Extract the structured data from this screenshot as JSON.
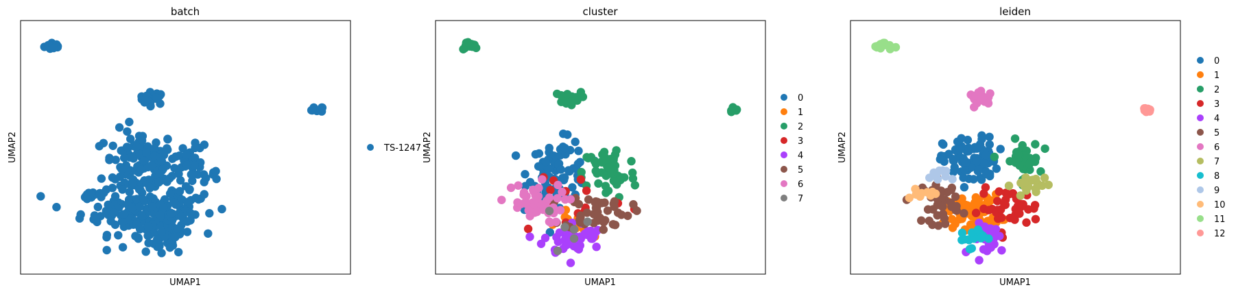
{
  "palette": {
    "batch": [
      "#1f77b4"
    ],
    "cluster": [
      "#1f77b4",
      "#ff7f0e",
      "#279e68",
      "#d62728",
      "#aa40fc",
      "#8c564b",
      "#e377c2",
      "#7f7f7f"
    ],
    "leiden": [
      "#1f77b4",
      "#ff7f0e",
      "#279e68",
      "#d62728",
      "#aa40fc",
      "#8c564b",
      "#e377c2",
      "#b5bd61",
      "#17becf",
      "#aec7e8",
      "#ffbb78",
      "#98df8a",
      "#ff9896"
    ]
  },
  "chart_data": [
    {
      "type": "scatter",
      "title": "batch",
      "xlabel": "UMAP1",
      "ylabel": "UMAP2",
      "ticks": "none",
      "legend_placement": "right",
      "legend": [
        "TS-1247"
      ],
      "groups": [
        {
          "name": "TS-1247",
          "clusters": [
            {
              "cx": 0.6,
              "cy": 15.2,
              "sx": 0.15,
              "sy": 0.12,
              "n": 14
            },
            {
              "cx": 3.9,
              "cy": 12.1,
              "sx": 0.22,
              "sy": 0.18,
              "n": 22
            },
            {
              "cx": 9.4,
              "cy": 11.4,
              "sx": 0.1,
              "sy": 0.1,
              "n": 8
            },
            {
              "cx": 3.5,
              "cy": 8.2,
              "sx": 0.6,
              "sy": 1.0,
              "n": 120
            },
            {
              "cx": 3.3,
              "cy": 5.5,
              "sx": 0.9,
              "sy": 0.7,
              "n": 120
            },
            {
              "cx": 5.2,
              "cy": 7.6,
              "sx": 0.45,
              "sy": 0.8,
              "n": 50
            },
            {
              "cx": 4.6,
              "cy": 5.2,
              "sx": 0.5,
              "sy": 0.6,
              "n": 50
            },
            {
              "cx": 4.1,
              "cy": 3.7,
              "sx": 0.45,
              "sy": 0.45,
              "n": 40
            },
            {
              "cx": 1.9,
              "cy": 6.3,
              "sx": 0.25,
              "sy": 0.15,
              "n": 12
            }
          ]
        }
      ]
    },
    {
      "type": "scatter",
      "title": "cluster",
      "xlabel": "UMAP1",
      "ylabel": "UMAP2",
      "ticks": "none",
      "legend_placement": "right",
      "legend": [
        "0",
        "1",
        "2",
        "3",
        "4",
        "5",
        "6",
        "7"
      ],
      "groups": [
        {
          "name": "0",
          "clusters": [
            {
              "cx": 3.6,
              "cy": 7.8,
              "sx": 0.5,
              "sy": 0.9,
              "n": 90
            }
          ]
        },
        {
          "name": "1",
          "clusters": [
            {
              "cx": 4.1,
              "cy": 4.6,
              "sx": 0.3,
              "sy": 0.4,
              "n": 16
            }
          ]
        },
        {
          "name": "2",
          "clusters": [
            {
              "cx": 0.6,
              "cy": 15.2,
              "sx": 0.15,
              "sy": 0.12,
              "n": 14
            },
            {
              "cx": 3.9,
              "cy": 12.1,
              "sx": 0.22,
              "sy": 0.18,
              "n": 22
            },
            {
              "cx": 9.4,
              "cy": 11.4,
              "sx": 0.1,
              "sy": 0.1,
              "n": 8
            },
            {
              "cx": 5.3,
              "cy": 7.7,
              "sx": 0.45,
              "sy": 0.8,
              "n": 55
            }
          ]
        },
        {
          "name": "3",
          "clusters": [
            {
              "cx": 4.0,
              "cy": 6.3,
              "sx": 1.0,
              "sy": 1.2,
              "n": 14
            }
          ]
        },
        {
          "name": "4",
          "clusters": [
            {
              "cx": 4.1,
              "cy": 3.8,
              "sx": 0.5,
              "sy": 0.5,
              "n": 45
            }
          ]
        },
        {
          "name": "5",
          "clusters": [
            {
              "cx": 4.9,
              "cy": 5.4,
              "sx": 0.55,
              "sy": 0.55,
              "n": 45
            }
          ]
        },
        {
          "name": "6",
          "clusters": [
            {
              "cx": 2.7,
              "cy": 5.9,
              "sx": 0.55,
              "sy": 0.6,
              "n": 45
            }
          ]
        },
        {
          "name": "7",
          "clusters": [
            {
              "cx": 4.3,
              "cy": 4.1,
              "sx": 0.6,
              "sy": 0.7,
              "n": 6
            }
          ]
        }
      ]
    },
    {
      "type": "scatter",
      "title": "leiden",
      "xlabel": "UMAP1",
      "ylabel": "UMAP2",
      "ticks": "none",
      "legend_placement": "right",
      "legend": [
        "0",
        "1",
        "2",
        "3",
        "4",
        "5",
        "6",
        "7",
        "8",
        "9",
        "10",
        "11",
        "12"
      ],
      "groups": [
        {
          "name": "0",
          "clusters": [
            {
              "cx": 3.5,
              "cy": 8.4,
              "sx": 0.45,
              "sy": 0.7,
              "n": 90
            }
          ]
        },
        {
          "name": "1",
          "clusters": [
            {
              "cx": 3.6,
              "cy": 5.4,
              "sx": 0.45,
              "sy": 0.5,
              "n": 75
            }
          ]
        },
        {
          "name": "2",
          "clusters": [
            {
              "cx": 5.2,
              "cy": 8.4,
              "sx": 0.3,
              "sy": 0.6,
              "n": 40
            }
          ]
        },
        {
          "name": "3",
          "clusters": [
            {
              "cx": 4.8,
              "cy": 5.6,
              "sx": 0.5,
              "sy": 0.55,
              "n": 40
            }
          ]
        },
        {
          "name": "4",
          "clusters": [
            {
              "cx": 4.2,
              "cy": 3.8,
              "sx": 0.3,
              "sy": 0.45,
              "n": 30
            }
          ]
        },
        {
          "name": "5",
          "clusters": [
            {
              "cx": 2.5,
              "cy": 6.0,
              "sx": 0.3,
              "sy": 0.65,
              "n": 40
            }
          ]
        },
        {
          "name": "6",
          "clusters": [
            {
              "cx": 3.9,
              "cy": 12.1,
              "sx": 0.22,
              "sy": 0.18,
              "n": 22
            }
          ]
        },
        {
          "name": "7",
          "clusters": [
            {
              "cx": 5.5,
              "cy": 7.0,
              "sx": 0.3,
              "sy": 0.3,
              "n": 25
            }
          ]
        },
        {
          "name": "8",
          "clusters": [
            {
              "cx": 3.5,
              "cy": 3.9,
              "sx": 0.22,
              "sy": 0.3,
              "n": 16
            }
          ]
        },
        {
          "name": "9",
          "clusters": [
            {
              "cx": 2.4,
              "cy": 7.6,
              "sx": 0.25,
              "sy": 0.2,
              "n": 10
            }
          ]
        },
        {
          "name": "10",
          "clusters": [
            {
              "cx": 1.9,
              "cy": 6.4,
              "sx": 0.22,
              "sy": 0.15,
              "n": 12
            }
          ]
        },
        {
          "name": "11",
          "clusters": [
            {
              "cx": 0.6,
              "cy": 15.2,
              "sx": 0.15,
              "sy": 0.12,
              "n": 14
            }
          ]
        },
        {
          "name": "12",
          "clusters": [
            {
              "cx": 9.4,
              "cy": 11.4,
              "sx": 0.1,
              "sy": 0.1,
              "n": 8
            }
          ]
        }
      ]
    }
  ]
}
